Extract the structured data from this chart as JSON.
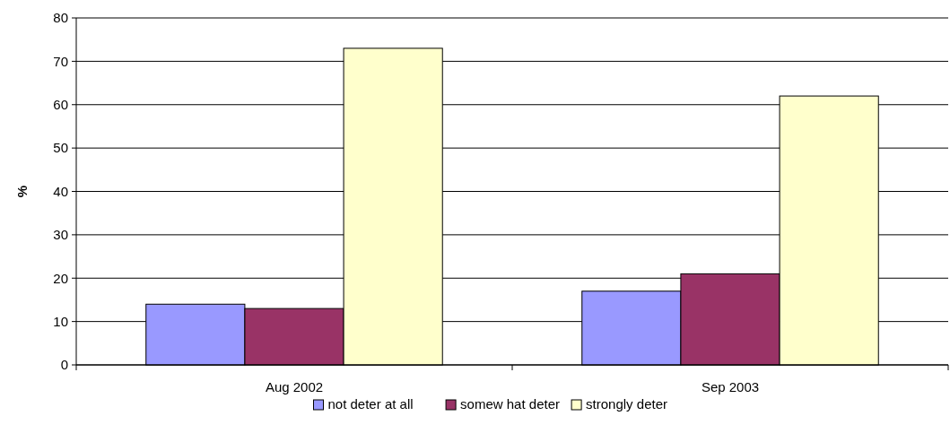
{
  "chart_data": {
    "type": "bar",
    "ylabel": "%",
    "categories": [
      "Aug 2002",
      "Sep 2003"
    ],
    "series": [
      {
        "name": "not deter at all",
        "color": "#9999ff",
        "values": [
          14,
          17
        ]
      },
      {
        "name": "somew hat deter",
        "color": "#993366",
        "values": [
          13,
          21
        ]
      },
      {
        "name": "strongly deter",
        "color": "#ffffcc",
        "values": [
          73,
          62
        ]
      }
    ],
    "ylim": [
      0,
      80
    ],
    "yticks": [
      0,
      10,
      20,
      30,
      40,
      50,
      60,
      70,
      80
    ],
    "grid": "y",
    "legend": "bottom"
  }
}
